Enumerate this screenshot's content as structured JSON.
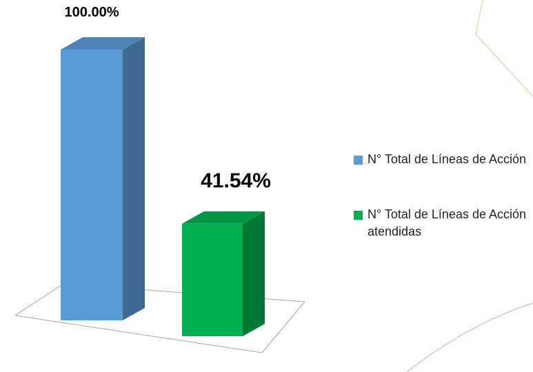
{
  "chart_data": {
    "type": "bar3d",
    "series": [
      {
        "name": "N° Total de Líneas de Acción",
        "color": "#5b9bd5",
        "values": [
          100
        ],
        "value_labels": [
          "100.00%"
        ]
      },
      {
        "name": "N° Total de Líneas de Acción atendidas",
        "color": "#00b050",
        "values": [
          41.54
        ],
        "value_labels": [
          "41.54%"
        ]
      }
    ]
  }
}
